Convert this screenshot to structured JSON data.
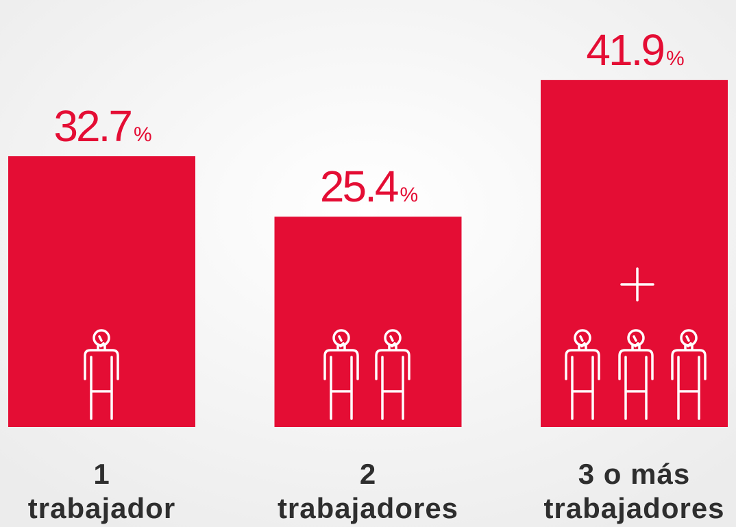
{
  "chart_data": {
    "type": "bar",
    "categories": [
      [
        "1",
        "trabajador"
      ],
      [
        "2",
        "trabajadores"
      ],
      [
        "3 o más",
        "trabajadores"
      ]
    ],
    "values": [
      32.7,
      25.4,
      41.9
    ],
    "value_labels": [
      "32.7%",
      "25.4%",
      "41.9%"
    ],
    "color": "#e40d34"
  }
}
